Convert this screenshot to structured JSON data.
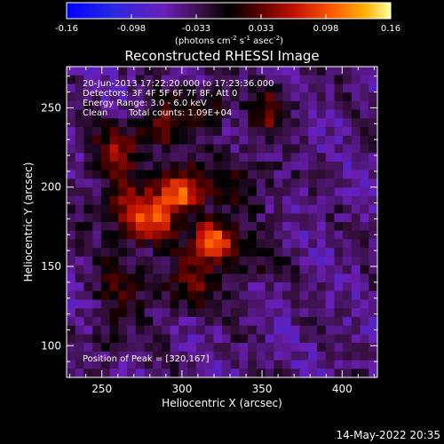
{
  "colorbar": {
    "ticks": [
      "-0.16",
      "-0.098",
      "-0.033",
      "0.033",
      "0.098",
      "0.16"
    ],
    "unit_main": "(photons cm",
    "unit_sup1": "-2",
    "unit_mid1": " s",
    "unit_sup2": "-1",
    "unit_mid2": " asec",
    "unit_sup3": "-2",
    "unit_end": ")"
  },
  "footer": {
    "timestamp": "14-May-2022 20:35"
  },
  "chart_data": {
    "type": "heatmap",
    "title": "Reconstructed RHESSI Image",
    "xlabel": "Heliocentric X (arcsec)",
    "ylabel": "Heliocentric Y (arcsec)",
    "xlim": [
      228,
      422
    ],
    "ylim": [
      80,
      276
    ],
    "xticks": [
      250,
      300,
      350,
      400
    ],
    "yticks": [
      100,
      150,
      200,
      250
    ],
    "clim": [
      -0.16,
      0.16
    ],
    "annotations": [
      "20-Jun-2013 17:22:20.000 to 17:23:36.000",
      "Detectors: 3F 4F 5F 6F 7F 8F, Att 0",
      "Energy Range: 3.0 - 6.0 keV",
      "Clean",
      "Total counts: 1.09E+04"
    ],
    "peak_label": "Position of Peak = [320,167]",
    "peak_position": [
      320,
      167
    ],
    "sources": [
      {
        "x": 300,
        "y": 198,
        "amp": 0.16,
        "sigma": 10
      },
      {
        "x": 320,
        "y": 167,
        "amp": 0.155,
        "sigma": 9
      },
      {
        "x": 282,
        "y": 178,
        "amp": 0.11,
        "sigma": 10
      },
      {
        "x": 262,
        "y": 188,
        "amp": 0.075,
        "sigma": 13
      },
      {
        "x": 258,
        "y": 224,
        "amp": 0.07,
        "sigma": 12
      },
      {
        "x": 287,
        "y": 238,
        "amp": 0.07,
        "sigma": 12
      },
      {
        "x": 315,
        "y": 250,
        "amp": 0.055,
        "sigma": 11
      },
      {
        "x": 355,
        "y": 248,
        "amp": 0.075,
        "sigma": 10
      },
      {
        "x": 305,
        "y": 140,
        "amp": 0.07,
        "sigma": 14
      },
      {
        "x": 262,
        "y": 140,
        "amp": 0.05,
        "sigma": 13
      },
      {
        "x": 340,
        "y": 205,
        "amp": 0.045,
        "sigma": 14
      },
      {
        "x": 255,
        "y": 105,
        "amp": 0.035,
        "sigma": 11
      },
      {
        "x": 345,
        "y": 155,
        "amp": 0.04,
        "sigma": 11
      }
    ],
    "background": -0.045
  }
}
